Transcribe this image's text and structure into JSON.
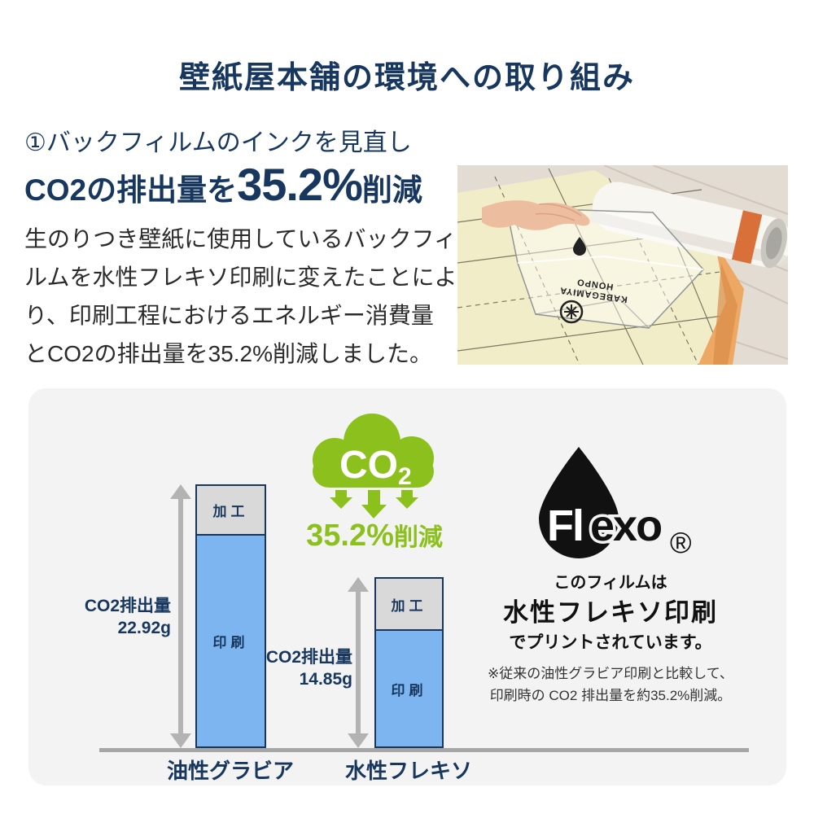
{
  "page_title": "壁紙屋本舗の環境への取り組み",
  "intro": {
    "heading": "①バックフィルムのインクを見直し",
    "highlight": {
      "prefix": "CO2の排出量を",
      "value": "35.2%",
      "suffix": "削減"
    },
    "body": "生のりつき壁紙に使用しているバックフィ\nルムを水性フレキソ印刷に変えたことによ\nり、印刷工程におけるエネルギー消費量\nとCO2の排出量を35.2%削減しました。"
  },
  "photo": {
    "film_print_line1": "KABEGAMIYA",
    "film_print_line2": "HONPO"
  },
  "badge": {
    "cloud_label": "CO",
    "cloud_sub": "2",
    "reduction_value": "35.2%",
    "reduction_suffix": "削減"
  },
  "flexo": {
    "brand_white": "Fl",
    "brand_black": "exo",
    "registered": "®",
    "caption_top": "このフィルムは",
    "caption_main": "水性フレキソ印刷",
    "caption_bottom": "でプリントされています。",
    "note1": "※従来の油性グラビア印刷と比較して、",
    "note2": "印刷時の CO2 排出量を約35.2%削減。"
  },
  "chart_data": {
    "type": "bar",
    "stacked": true,
    "categories": [
      "油性グラビア",
      "水性フレキソ"
    ],
    "series": [
      {
        "name": "印刷",
        "values": [
          18.62,
          10.35
        ],
        "color": "#7cb5ef"
      },
      {
        "name": "加工",
        "values": [
          4.3,
          4.5
        ],
        "color": "#d9d9d9"
      }
    ],
    "totals": [
      22.92,
      14.85
    ],
    "unit": "g",
    "total_labels": [
      "CO2排出量\n22.92g",
      "CO2排出量\n14.85g"
    ],
    "ylim": [
      0,
      24
    ],
    "grid": false,
    "legend": false
  },
  "colors": {
    "navy": "#17375e",
    "green": "#8cc11d",
    "bar_blue": "#7cb5ef",
    "bar_gray": "#d9d9d9",
    "panel_bg": "#f3f3f3",
    "arrow_gray": "#b3b3b3",
    "baseline_gray": "#a6a6a6"
  }
}
